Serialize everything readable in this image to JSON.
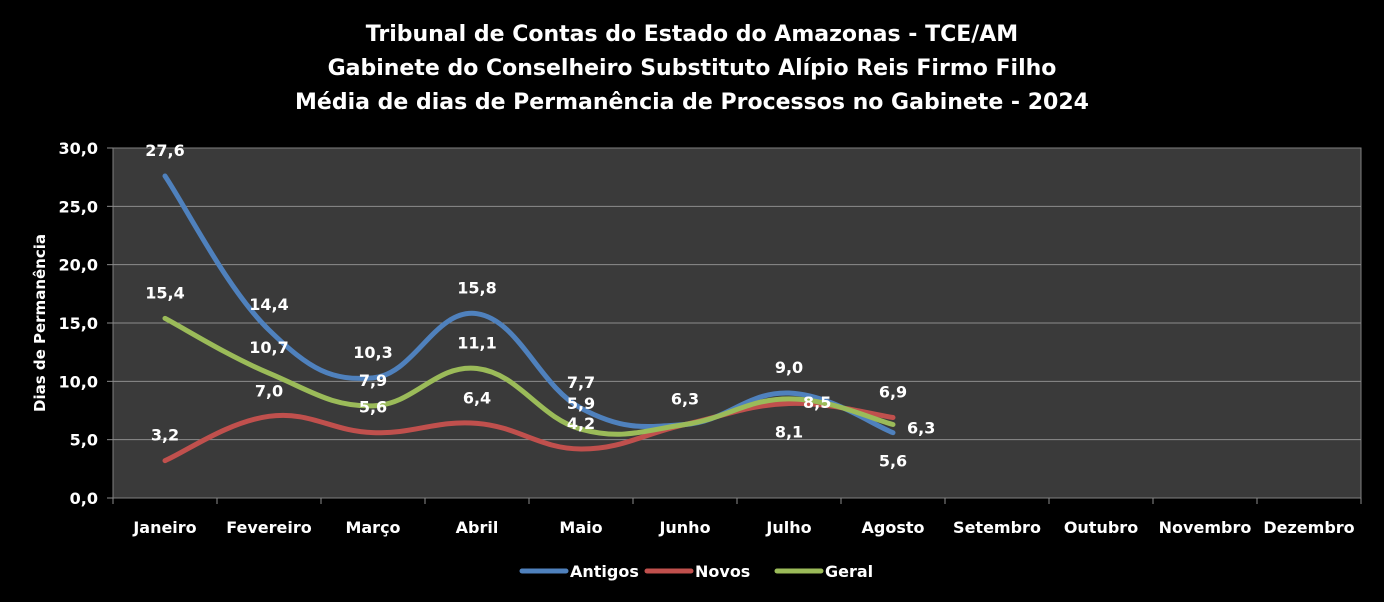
{
  "chart_data": {
    "type": "line",
    "title_lines": [
      "Tribunal de Contas do Estado do Amazonas - TCE/AM",
      "Gabinete do Conselheiro Substituto Alípio Reis Firmo Filho",
      "Média de dias de Permanência de Processos no Gabinete - 2024"
    ],
    "ylabel": "Dias de Permanência",
    "xlabel": "",
    "ylim": [
      0,
      30
    ],
    "y_ticks": [
      "0,0",
      "5,0",
      "10,0",
      "15,0",
      "20,0",
      "25,0",
      "30,0"
    ],
    "categories": [
      "Janeiro",
      "Fevereiro",
      "Março",
      "Abril",
      "Maio",
      "Junho",
      "Julho",
      "Agosto",
      "Setembro",
      "Outubro",
      "Novembro",
      "Dezembro"
    ],
    "grid": true,
    "legend_position": "bottom",
    "series": [
      {
        "name": "Antigos",
        "color": "#4F81BD",
        "values": [
          27.6,
          14.4,
          10.3,
          15.8,
          7.7,
          6.3,
          9.0,
          5.6,
          null,
          null,
          null,
          null
        ],
        "labels": [
          "27,6",
          "14,4",
          "10,3",
          "15,8",
          "7,7",
          "6,3",
          "9,0",
          "5,6",
          null,
          null,
          null,
          null
        ]
      },
      {
        "name": "Novos",
        "color": "#C0504D",
        "values": [
          3.2,
          7.0,
          5.6,
          6.4,
          4.2,
          6.3,
          8.1,
          6.9,
          null,
          null,
          null,
          null
        ],
        "labels": [
          "3,2",
          "7,0",
          "5,6",
          "6,4",
          "4,2",
          null,
          "8,1",
          "6,9",
          null,
          null,
          null,
          null
        ]
      },
      {
        "name": "Geral",
        "color": "#9BBB59",
        "values": [
          15.4,
          10.7,
          7.9,
          11.1,
          5.9,
          6.3,
          8.5,
          6.3,
          null,
          null,
          null,
          null
        ],
        "labels": [
          "15,4",
          "10,7",
          "7,9",
          "11,1",
          "5,9",
          null,
          "8,5",
          "6,3",
          null,
          null,
          null,
          null
        ]
      }
    ]
  }
}
